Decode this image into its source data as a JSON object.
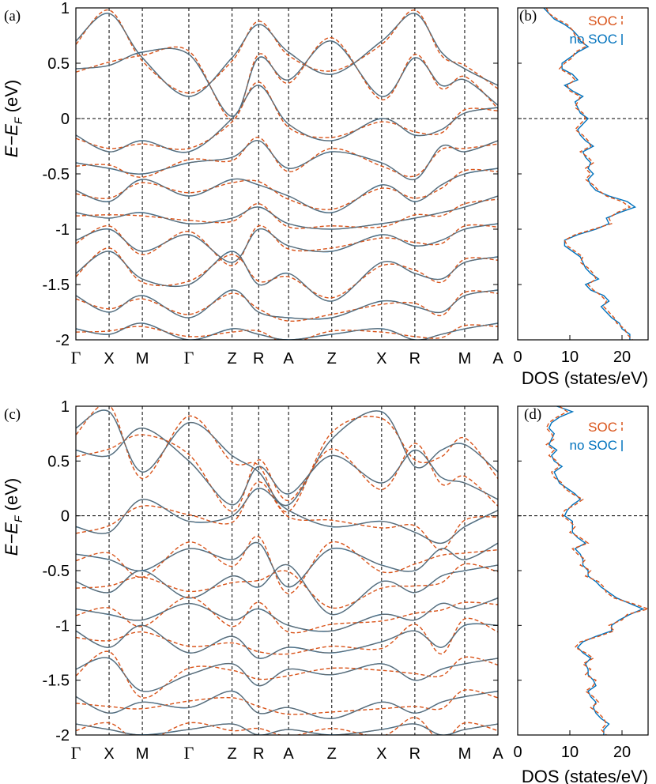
{
  "colors": {
    "soc": "#D95319",
    "nosoc": "#0072BD",
    "frame": "#000000",
    "bands": "#6a6a6a"
  },
  "chart_data": [
    {
      "panel": "(a)",
      "type": "line",
      "ylabel": "E−E_F (eV)",
      "ylim": [
        -2,
        1
      ],
      "yticks": [
        "1",
        "0.5",
        "0",
        "-0.5",
        "-1",
        "-1.5",
        "-2"
      ],
      "xticks": [
        "Γ",
        "X",
        "M",
        "Γ",
        "Z",
        "R",
        "A",
        "Z",
        "X",
        "R",
        "M",
        "A"
      ],
      "xtick_positions": [
        0,
        1,
        2,
        3.4,
        4.7,
        5.5,
        6.4,
        7.7,
        9.2,
        10.2,
        11.7,
        12.7
      ],
      "bands": [
        [
          0.7,
          0.95,
          0.55,
          0.2,
          0.55,
          0.85,
          0.6,
          0.4,
          0.7,
          0.95,
          0.6,
          0.45,
          0.3
        ],
        [
          0.45,
          0.48,
          0.6,
          0.58,
          0.02,
          0.55,
          0.35,
          0.7,
          0.2,
          0.55,
          0.3,
          0.35,
          0.12
        ],
        [
          -0.15,
          -0.3,
          -0.2,
          -0.3,
          0.0,
          0.3,
          -0.05,
          -0.2,
          0.0,
          -0.15,
          -0.1,
          0.05,
          0.1
        ],
        [
          -0.4,
          -0.45,
          -0.5,
          -0.4,
          -0.35,
          -0.2,
          -0.45,
          -0.3,
          -0.4,
          -0.55,
          -0.25,
          -0.3,
          -0.2
        ],
        [
          -0.65,
          -0.75,
          -0.55,
          -0.7,
          -0.55,
          -0.6,
          -0.7,
          -0.85,
          -0.6,
          -0.75,
          -0.6,
          -0.5,
          -0.45
        ],
        [
          -0.85,
          -0.9,
          -0.85,
          -0.95,
          -0.9,
          -0.8,
          -0.95,
          -1.0,
          -0.95,
          -0.9,
          -0.85,
          -0.8,
          -0.7
        ],
        [
          -1.1,
          -1.0,
          -1.2,
          -1.05,
          -1.3,
          -1.0,
          -1.15,
          -1.2,
          -1.05,
          -1.15,
          -1.1,
          -1.0,
          -0.95
        ],
        [
          -1.4,
          -1.2,
          -1.45,
          -1.5,
          -1.2,
          -1.5,
          -1.4,
          -1.65,
          -1.3,
          -1.4,
          -1.45,
          -1.3,
          -1.25
        ],
        [
          -1.6,
          -1.75,
          -1.6,
          -1.8,
          -1.55,
          -1.75,
          -1.8,
          -1.8,
          -1.65,
          -1.7,
          -1.75,
          -1.6,
          -1.55
        ],
        [
          -1.9,
          -1.95,
          -1.85,
          -2.0,
          -1.9,
          -1.95,
          -2.0,
          -1.95,
          -1.9,
          -2.0,
          -1.95,
          -1.9,
          -1.85
        ]
      ],
      "band_x": [
        0,
        1,
        2,
        3.4,
        4.7,
        5.5,
        6.4,
        7.7,
        9.2,
        10.2,
        11.0,
        11.7,
        12.7
      ],
      "soc_offset": 0.03
    },
    {
      "panel": "(b)",
      "type": "line",
      "xlabel": "DOS (states/eV)",
      "xlim": [
        0,
        25
      ],
      "xticks": [
        "0",
        "10",
        "20"
      ],
      "xtick_values": [
        0,
        10,
        20
      ],
      "ylim": [
        -2,
        1
      ],
      "series": [
        {
          "name": "SOC",
          "style": "dashed",
          "energy": [
            1.0,
            0.95,
            0.9,
            0.85,
            0.8,
            0.75,
            0.7,
            0.65,
            0.6,
            0.55,
            0.5,
            0.45,
            0.4,
            0.35,
            0.3,
            0.25,
            0.2,
            0.15,
            0.1,
            0.05,
            0.0,
            -0.05,
            -0.1,
            -0.15,
            -0.2,
            -0.25,
            -0.3,
            -0.35,
            -0.4,
            -0.45,
            -0.5,
            -0.55,
            -0.6,
            -0.65,
            -0.7,
            -0.75,
            -0.8,
            -0.85,
            -0.9,
            -0.95,
            -1.0,
            -1.05,
            -1.1,
            -1.15,
            -1.2,
            -1.25,
            -1.3,
            -1.35,
            -1.4,
            -1.45,
            -1.5,
            -1.55,
            -1.6,
            -1.65,
            -1.7,
            -1.75,
            -1.8,
            -1.85,
            -1.9,
            -1.95,
            -2.0
          ],
          "dos": [
            5.5,
            6.0,
            7.5,
            9.5,
            10.5,
            11.0,
            12.5,
            13.0,
            11.0,
            10.5,
            9.0,
            8.0,
            10.0,
            11.0,
            9.5,
            10.0,
            12.0,
            11.5,
            11.0,
            12.5,
            13.0,
            12.0,
            11.0,
            12.5,
            13.5,
            14.0,
            12.0,
            13.5,
            14.5,
            13.0,
            14.0,
            13.0,
            14.5,
            15.5,
            17.0,
            20.0,
            21.5,
            19.0,
            17.5,
            18.0,
            14.5,
            11.0,
            9.0,
            9.5,
            11.0,
            12.5,
            12.0,
            13.5,
            14.5,
            15.0,
            13.5,
            14.5,
            16.0,
            17.0,
            16.5,
            17.5,
            18.5,
            19.0,
            20.5,
            21.0,
            22.0
          ]
        },
        {
          "name": "no SOC",
          "style": "solid",
          "energy": [
            1.0,
            0.95,
            0.9,
            0.85,
            0.8,
            0.75,
            0.7,
            0.65,
            0.6,
            0.55,
            0.5,
            0.45,
            0.4,
            0.35,
            0.3,
            0.25,
            0.2,
            0.15,
            0.1,
            0.05,
            0.0,
            -0.05,
            -0.1,
            -0.15,
            -0.2,
            -0.25,
            -0.3,
            -0.35,
            -0.4,
            -0.45,
            -0.5,
            -0.55,
            -0.6,
            -0.65,
            -0.7,
            -0.75,
            -0.8,
            -0.85,
            -0.9,
            -0.95,
            -1.0,
            -1.05,
            -1.1,
            -1.15,
            -1.2,
            -1.25,
            -1.3,
            -1.35,
            -1.4,
            -1.45,
            -1.5,
            -1.55,
            -1.6,
            -1.65,
            -1.7,
            -1.75,
            -1.8,
            -1.85,
            -1.9,
            -1.95,
            -2.0
          ],
          "dos": [
            5.0,
            6.0,
            7.0,
            9.0,
            10.5,
            11.5,
            12.0,
            13.5,
            11.5,
            10.0,
            8.5,
            8.5,
            10.5,
            11.5,
            9.0,
            10.5,
            12.5,
            11.0,
            11.5,
            12.0,
            13.5,
            12.5,
            11.5,
            12.0,
            13.0,
            14.5,
            12.5,
            13.0,
            14.0,
            13.5,
            14.5,
            13.5,
            14.0,
            15.0,
            17.5,
            21.0,
            22.5,
            19.5,
            17.0,
            17.5,
            15.0,
            11.5,
            9.0,
            9.0,
            10.5,
            12.0,
            12.5,
            13.0,
            14.0,
            15.5,
            13.0,
            14.0,
            16.5,
            17.5,
            16.0,
            17.0,
            18.0,
            19.5,
            20.0,
            21.5,
            21.5
          ]
        }
      ]
    },
    {
      "panel": "(c)",
      "type": "line",
      "ylabel": "E−E_F (eV)",
      "ylim": [
        -2,
        1
      ],
      "yticks": [
        "1",
        "0.5",
        "0",
        "-0.5",
        "-1",
        "-1.5",
        "-2"
      ],
      "xticks": [
        "Γ",
        "X",
        "M",
        "Γ",
        "Z",
        "R",
        "A",
        "Z",
        "X",
        "R",
        "M",
        "A"
      ],
      "xtick_positions": [
        0,
        1,
        2,
        3.4,
        4.7,
        5.5,
        6.4,
        7.7,
        9.2,
        10.2,
        11.7,
        12.7
      ],
      "bands": [
        [
          0.8,
          0.95,
          0.4,
          0.85,
          0.55,
          0.4,
          0.1,
          0.7,
          0.95,
          0.45,
          0.6,
          0.65,
          0.4
        ],
        [
          0.6,
          0.55,
          0.8,
          0.5,
          0.1,
          0.45,
          0.2,
          0.55,
          0.3,
          0.6,
          0.35,
          0.3,
          0.15
        ],
        [
          -0.1,
          -0.15,
          0.15,
          -0.05,
          0.0,
          0.25,
          0.05,
          -0.1,
          -0.05,
          -0.15,
          -0.25,
          -0.1,
          0.05
        ],
        [
          -0.35,
          -0.4,
          -0.5,
          -0.3,
          -0.4,
          -0.25,
          -0.65,
          -0.3,
          -0.45,
          -0.5,
          -0.3,
          -0.4,
          -0.25
        ],
        [
          -0.6,
          -0.7,
          -0.5,
          -0.75,
          -0.55,
          -0.65,
          -0.45,
          -0.9,
          -0.6,
          -0.7,
          -0.55,
          -0.5,
          -0.45
        ],
        [
          -0.85,
          -0.9,
          -0.95,
          -0.8,
          -0.95,
          -0.85,
          -1.0,
          -1.05,
          -0.9,
          -0.95,
          -0.8,
          -0.85,
          -0.75
        ],
        [
          -1.05,
          -1.2,
          -1.0,
          -1.25,
          -1.1,
          -1.3,
          -1.2,
          -1.25,
          -1.15,
          -1.05,
          -1.2,
          -1.0,
          -1.0
        ],
        [
          -1.4,
          -1.3,
          -1.6,
          -1.45,
          -1.35,
          -1.55,
          -1.4,
          -1.45,
          -1.35,
          -1.5,
          -1.4,
          -1.35,
          -1.3
        ],
        [
          -1.65,
          -1.8,
          -1.7,
          -1.75,
          -1.6,
          -1.8,
          -1.75,
          -1.85,
          -1.7,
          -1.8,
          -1.7,
          -1.65,
          -1.6
        ],
        [
          -1.9,
          -1.95,
          -2.0,
          -1.95,
          -1.9,
          -2.0,
          -1.95,
          -2.0,
          -1.95,
          -1.9,
          -2.0,
          -1.95,
          -1.9
        ]
      ],
      "band_x": [
        0,
        1,
        2,
        3.4,
        4.7,
        5.5,
        6.4,
        7.7,
        9.2,
        10.2,
        11.0,
        11.7,
        12.7
      ],
      "soc_offset": 0.06
    },
    {
      "panel": "(d)",
      "type": "line",
      "xlabel": "DOS (states/eV)",
      "xlim": [
        0,
        25
      ],
      "xticks": [
        "0",
        "10",
        "20"
      ],
      "xtick_values": [
        0,
        10,
        20
      ],
      "ylim": [
        -2,
        1
      ],
      "series": [
        {
          "name": "SOC",
          "style": "dashed",
          "energy": [
            1.0,
            0.95,
            0.9,
            0.85,
            0.8,
            0.75,
            0.7,
            0.65,
            0.6,
            0.55,
            0.5,
            0.45,
            0.4,
            0.35,
            0.3,
            0.25,
            0.2,
            0.15,
            0.1,
            0.05,
            0.0,
            -0.05,
            -0.1,
            -0.15,
            -0.2,
            -0.25,
            -0.3,
            -0.35,
            -0.4,
            -0.45,
            -0.5,
            -0.55,
            -0.6,
            -0.65,
            -0.7,
            -0.75,
            -0.8,
            -0.85,
            -0.9,
            -0.95,
            -1.0,
            -1.05,
            -1.1,
            -1.15,
            -1.2,
            -1.25,
            -1.3,
            -1.35,
            -1.4,
            -1.45,
            -1.5,
            -1.55,
            -1.6,
            -1.65,
            -1.7,
            -1.75,
            -1.8,
            -1.85,
            -1.9,
            -1.95,
            -2.0
          ],
          "dos": [
            8.0,
            9.5,
            7.5,
            6.0,
            5.5,
            6.5,
            7.0,
            5.5,
            7.0,
            6.0,
            7.5,
            8.0,
            6.5,
            7.0,
            8.5,
            9.0,
            10.5,
            12.5,
            11.0,
            9.0,
            8.5,
            10.0,
            11.0,
            10.0,
            12.0,
            13.5,
            10.5,
            11.5,
            13.0,
            12.0,
            14.0,
            13.0,
            15.5,
            16.5,
            17.0,
            18.5,
            22.0,
            25.0,
            21.0,
            20.0,
            17.5,
            18.5,
            15.5,
            12.0,
            11.0,
            13.0,
            14.5,
            12.5,
            14.0,
            13.0,
            15.0,
            14.5,
            13.0,
            14.5,
            15.5,
            14.0,
            15.5,
            16.5,
            17.0,
            16.0,
            17.0
          ]
        },
        {
          "name": "no SOC",
          "style": "solid",
          "energy": [
            1.0,
            0.95,
            0.9,
            0.85,
            0.8,
            0.75,
            0.7,
            0.65,
            0.6,
            0.55,
            0.5,
            0.45,
            0.4,
            0.35,
            0.3,
            0.25,
            0.2,
            0.15,
            0.1,
            0.05,
            0.0,
            -0.05,
            -0.1,
            -0.15,
            -0.2,
            -0.25,
            -0.3,
            -0.35,
            -0.4,
            -0.45,
            -0.5,
            -0.55,
            -0.6,
            -0.65,
            -0.7,
            -0.75,
            -0.8,
            -0.85,
            -0.9,
            -0.95,
            -1.0,
            -1.05,
            -1.1,
            -1.15,
            -1.2,
            -1.25,
            -1.3,
            -1.35,
            -1.4,
            -1.45,
            -1.5,
            -1.55,
            -1.6,
            -1.65,
            -1.7,
            -1.75,
            -1.8,
            -1.85,
            -1.9,
            -1.95,
            -2.0
          ],
          "dos": [
            7.5,
            10.5,
            8.0,
            6.5,
            6.0,
            7.0,
            6.5,
            6.0,
            7.5,
            6.5,
            7.0,
            8.5,
            7.0,
            7.5,
            8.0,
            9.5,
            11.0,
            12.0,
            10.5,
            9.5,
            9.0,
            10.5,
            10.5,
            10.5,
            11.5,
            13.0,
            11.0,
            12.0,
            12.5,
            12.5,
            13.5,
            13.5,
            15.0,
            16.0,
            17.5,
            19.0,
            21.5,
            24.0,
            21.5,
            19.5,
            18.0,
            18.0,
            15.0,
            12.5,
            11.5,
            12.5,
            14.0,
            13.0,
            13.5,
            13.5,
            14.5,
            15.0,
            13.5,
            14.0,
            15.0,
            14.5,
            15.0,
            16.0,
            17.5,
            16.5,
            16.5
          ]
        }
      ]
    }
  ],
  "text": {
    "panel_a": "(a)",
    "panel_b": "(b)",
    "panel_c": "(c)",
    "panel_d": "(d)",
    "legend_soc": "SOC",
    "legend_nosoc": "no SOC",
    "ylabel_main": "E−E",
    "ylabel_sub": "F",
    "ylabel_unit": " (eV)",
    "dos_xlabel": "DOS (states/eV)"
  }
}
